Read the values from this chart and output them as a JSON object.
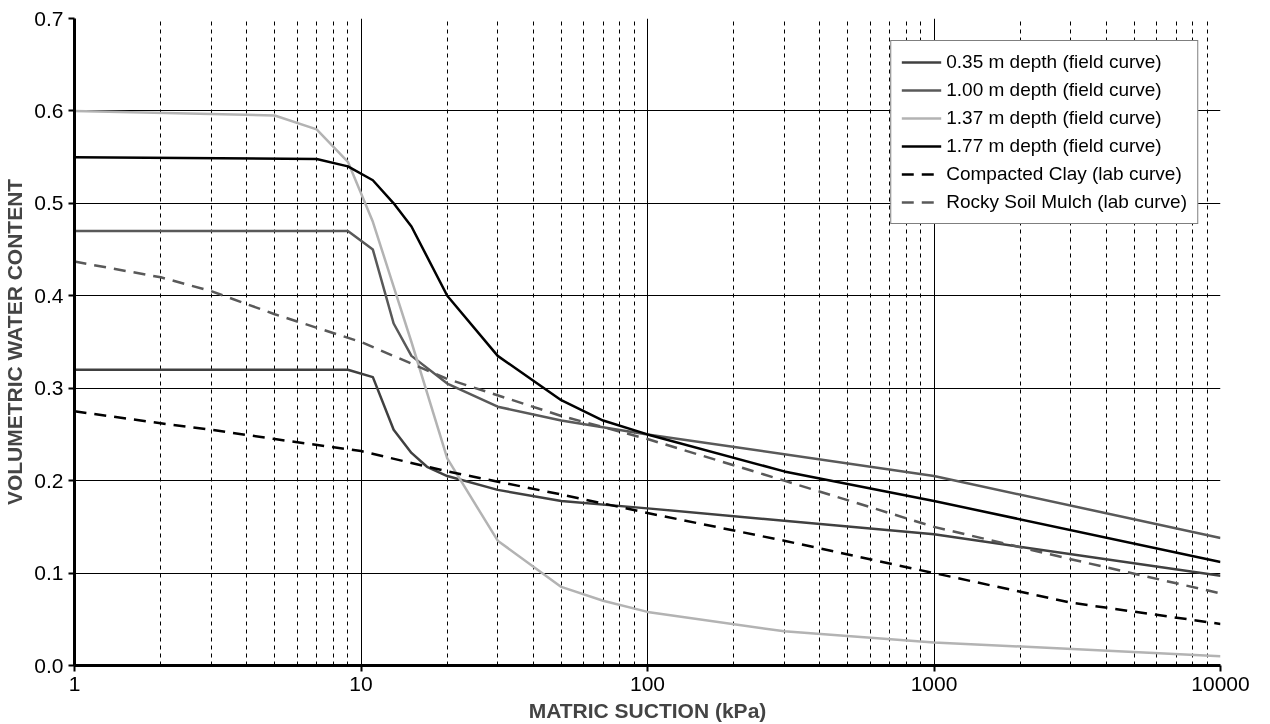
{
  "chart_data": {
    "type": "line",
    "xlabel": "MATRIC SUCTION (kPa)",
    "ylabel": "VOLUMETRIC WATER CONTENT",
    "log": "x",
    "xlim": [
      1,
      10000
    ],
    "ylim": [
      0,
      0.7
    ],
    "xticks": [
      1,
      10,
      100,
      1000,
      10000
    ],
    "yticks": [
      {
        "value": 0,
        "label": "0.0"
      },
      {
        "value": 0.1,
        "label": "0.1"
      },
      {
        "value": 0.2,
        "label": "0.2"
      },
      {
        "value": 0.3,
        "label": "0.3"
      },
      {
        "value": 0.4,
        "label": "0.4"
      },
      {
        "value": 0.5,
        "label": "0.5"
      },
      {
        "value": 0.6,
        "label": "0.6"
      },
      {
        "value": 0.7,
        "label": "0.7"
      }
    ],
    "grid": true,
    "legend": "top right",
    "marker": "none",
    "series": [
      {
        "name": "0.35 m depth (field curve)",
        "color": "#404040",
        "line_style": "solid",
        "x": [
          1,
          9,
          11,
          13,
          15,
          17,
          20,
          30,
          50,
          100,
          1000,
          10000
        ],
        "values": [
          0.32,
          0.32,
          0.312,
          0.255,
          0.23,
          0.215,
          0.205,
          0.19,
          0.178,
          0.17,
          0.142,
          0.097
        ]
      },
      {
        "name": "1.00 m depth (field curve)",
        "color": "#595959",
        "line_style": "solid",
        "x": [
          1,
          9,
          11,
          13,
          15,
          20,
          30,
          50,
          100,
          1000,
          10000
        ],
        "values": [
          0.47,
          0.47,
          0.45,
          0.37,
          0.335,
          0.305,
          0.28,
          0.265,
          0.25,
          0.205,
          0.138
        ]
      },
      {
        "name": "1.37 m depth (field curve)",
        "color": "#b3b3b3",
        "line_style": "solid",
        "x": [
          1,
          5,
          7,
          9,
          11,
          13,
          15,
          20,
          30,
          50,
          70,
          100,
          300,
          1000,
          10000
        ],
        "values": [
          0.6,
          0.595,
          0.58,
          0.545,
          0.48,
          0.41,
          0.35,
          0.224,
          0.135,
          0.085,
          0.07,
          0.058,
          0.037,
          0.025,
          0.01
        ]
      },
      {
        "name": "1.77 m depth (field curve)",
        "color": "#000000",
        "line_style": "solid",
        "x": [
          1,
          7,
          9,
          11,
          13,
          15,
          20,
          30,
          50,
          70,
          100,
          300,
          1000,
          10000
        ],
        "values": [
          0.55,
          0.548,
          0.54,
          0.525,
          0.5,
          0.475,
          0.4,
          0.335,
          0.287,
          0.265,
          0.25,
          0.21,
          0.178,
          0.112
        ]
      },
      {
        "name": "Compacted Clay (lab curve)",
        "color": "#000000",
        "line_style": "dashed",
        "x": [
          1,
          2,
          3,
          5,
          10,
          20,
          50,
          100,
          300,
          1000,
          3000,
          10000
        ],
        "values": [
          0.275,
          0.262,
          0.255,
          0.245,
          0.232,
          0.21,
          0.185,
          0.165,
          0.135,
          0.1,
          0.068,
          0.045
        ]
      },
      {
        "name": "Rocky Soil Mulch (lab curve)",
        "color": "#595959",
        "line_style": "dashed",
        "x": [
          1,
          2,
          3,
          5,
          10,
          20,
          50,
          100,
          300,
          1000,
          3000,
          10000
        ],
        "values": [
          0.437,
          0.42,
          0.405,
          0.38,
          0.35,
          0.31,
          0.27,
          0.245,
          0.2,
          0.15,
          0.115,
          0.078
        ]
      }
    ]
  }
}
